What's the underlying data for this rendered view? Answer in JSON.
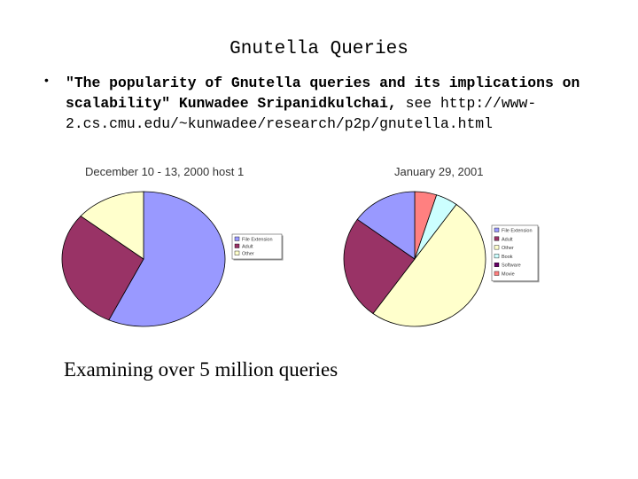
{
  "slide": {
    "title": "Gnutella Queries",
    "bullet_marker": "•",
    "bullet_quote": "\"The popularity of Gnutella queries and its implications on scalability\" Kunwadee Sripanidkulchai,",
    "bullet_see": "see http://www-2.cs.cmu.edu/~kunwadee/research/p2p/gnutella.html",
    "caption": "Examining over 5 million queries"
  },
  "colors": {
    "file_extension": "#9999ff",
    "adult": "#993366",
    "other": "#ffffcc",
    "mp3": "#ccffff",
    "software": "#660066",
    "movie": "#ff8080"
  },
  "chart_data": [
    {
      "type": "pie",
      "title": "December 10 - 13, 2000 host 1",
      "labels": [
        "File Extension",
        "Adult",
        "Other"
      ],
      "values": [
        57,
        29,
        14
      ],
      "colors": [
        "#9999ff",
        "#993366",
        "#ffffcc"
      ],
      "start_angle_deg": 0,
      "legend": "right"
    },
    {
      "type": "pie",
      "title": "January 29, 2001",
      "labels": [
        "File Extension",
        "Adult",
        "Other",
        "Book",
        "Software",
        "Movie"
      ],
      "values": [
        15,
        25,
        50,
        5,
        0,
        5
      ],
      "order_clockwise_from_top": [
        "Movie",
        "Book",
        "Other",
        "Adult",
        "File Extension"
      ],
      "colors": [
        "#9999ff",
        "#993366",
        "#ffffcc",
        "#ccffff",
        "#660066",
        "#ff8080"
      ],
      "legend": "right"
    }
  ]
}
